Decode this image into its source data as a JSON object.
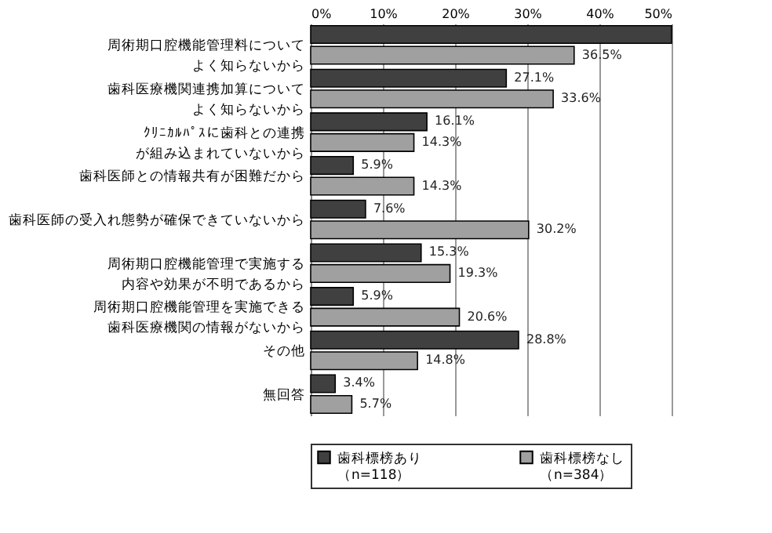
{
  "chart_data": {
    "type": "bar",
    "orientation": "horizontal",
    "categories": [
      "周術期口腔機能管理料についてよく知らないから",
      "歯科医療機関連携加算についてよく知らないから",
      "ｸﾘﾆｶﾙﾊﾟｽに歯科との連携が組み込まれていないから",
      "歯科医師との情報共有が困難だから",
      "歯科医師の受入れ態勢が確保できていないから",
      "周術期口腔機能管理で実施する内容や効果が不明であるから",
      "周術期口腔機能管理を実施できる歯科医療機関の情報がないから",
      "その他",
      "無回答"
    ],
    "series": [
      {
        "name": "歯科標榜あり（n=118）",
        "color": "#404040",
        "values": [
          50,
          27.1,
          16.1,
          5.9,
          7.6,
          15.3,
          5.9,
          28.8,
          3.4
        ],
        "value_labels": [
          null,
          "27.1%",
          "16.1%",
          "5.9%",
          "7.6%",
          "15.3%",
          "5.9%",
          "28.8%",
          "3.4%"
        ]
      },
      {
        "name": "歯科標榜なし（n=384）",
        "color": "#a0a0a0",
        "values": [
          36.5,
          33.6,
          14.3,
          14.3,
          30.2,
          19.3,
          20.6,
          14.8,
          5.7
        ],
        "value_labels": [
          "36.5%",
          "33.6%",
          "14.3%",
          "14.3%",
          "30.2%",
          "19.3%",
          "20.6%",
          "14.8%",
          "5.7%"
        ]
      }
    ],
    "xlim": [
      0,
      50
    ],
    "xticks": [
      {
        "value": 0,
        "label": "0%"
      },
      {
        "value": 10,
        "label": "10%"
      },
      {
        "value": 20,
        "label": "20%"
      },
      {
        "value": 30,
        "label": "30%"
      },
      {
        "value": 40,
        "label": "40%"
      },
      {
        "value": 50,
        "label": "50%"
      }
    ],
    "grid": "x",
    "legend": "bottom"
  }
}
